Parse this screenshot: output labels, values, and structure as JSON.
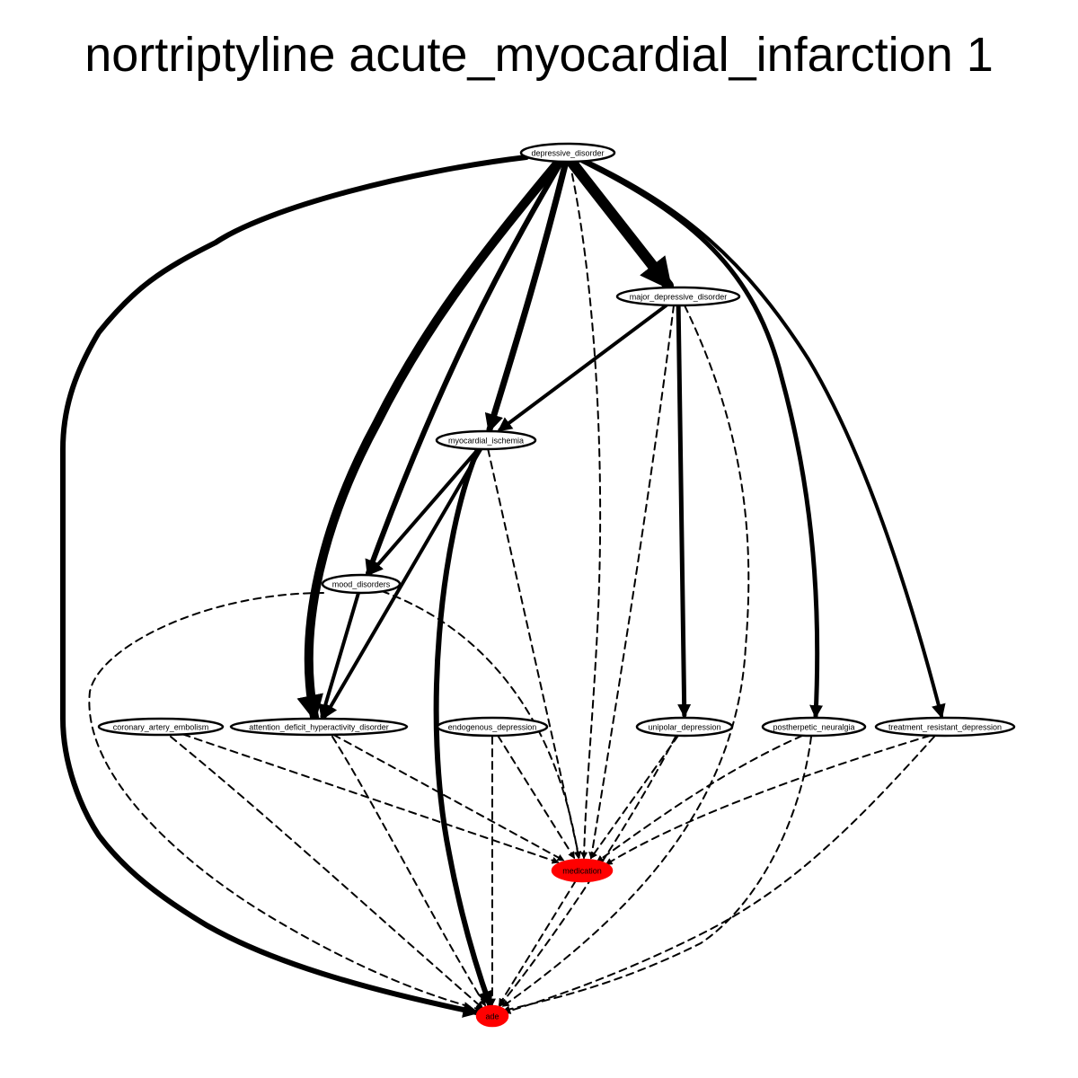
{
  "title": "nortriptyline acute_myocardial_infarction 1",
  "colors": {
    "highlight": "#ff0000",
    "node": "#ffffff",
    "stroke": "#000000"
  },
  "nodes": [
    {
      "id": "depressive_disorder",
      "label": "depressive_disorder",
      "highlight": false
    },
    {
      "id": "major_depressive_disorder",
      "label": "major_depressive_disorder",
      "highlight": false
    },
    {
      "id": "myocardial_ischemia",
      "label": "myocardial_ischemia",
      "highlight": false
    },
    {
      "id": "mood_disorders",
      "label": "mood_disorders",
      "highlight": false
    },
    {
      "id": "coronary_artery_embolism",
      "label": "coronary_artery_embolism",
      "highlight": false
    },
    {
      "id": "attention_deficit_hyperactivity_disorder",
      "label": "attention_deficit_hyperactivity_disorder",
      "highlight": false
    },
    {
      "id": "endogenous_depression",
      "label": "endogenous_depression",
      "highlight": false
    },
    {
      "id": "unipolar_depression",
      "label": "unipolar_depression",
      "highlight": false
    },
    {
      "id": "postherpetic_neuralgia",
      "label": "postherpetic_neuralgia",
      "highlight": false
    },
    {
      "id": "treatment_resistant_depression",
      "label": "treatment_resistant_depression",
      "highlight": false
    },
    {
      "id": "medication",
      "label": "medication",
      "highlight": true
    },
    {
      "id": "ade",
      "label": "ade",
      "highlight": true
    }
  ],
  "edges": [
    {
      "from": "depressive_disorder",
      "to": "ade",
      "style": "solid",
      "weight": 6
    },
    {
      "from": "depressive_disorder",
      "to": "attention_deficit_hyperactivity_disorder",
      "style": "solid",
      "weight": 10
    },
    {
      "from": "depressive_disorder",
      "to": "mood_disorders",
      "style": "solid",
      "weight": 6
    },
    {
      "from": "depressive_disorder",
      "to": "myocardial_ischemia",
      "style": "solid",
      "weight": 7
    },
    {
      "from": "depressive_disorder",
      "to": "medication",
      "style": "dashed",
      "weight": 2
    },
    {
      "from": "depressive_disorder",
      "to": "major_depressive_disorder",
      "style": "solid",
      "weight": 12
    },
    {
      "from": "depressive_disorder",
      "to": "postherpetic_neuralgia",
      "style": "solid",
      "weight": 5
    },
    {
      "from": "depressive_disorder",
      "to": "treatment_resistant_depression",
      "style": "solid",
      "weight": 4
    },
    {
      "from": "major_depressive_disorder",
      "to": "myocardial_ischemia",
      "style": "solid",
      "weight": 4
    },
    {
      "from": "major_depressive_disorder",
      "to": "unipolar_depression",
      "style": "solid",
      "weight": 5
    },
    {
      "from": "major_depressive_disorder",
      "to": "medication",
      "style": "dashed",
      "weight": 2
    },
    {
      "from": "major_depressive_disorder",
      "to": "ade",
      "style": "dashed",
      "weight": 2
    },
    {
      "from": "myocardial_ischemia",
      "to": "mood_disorders",
      "style": "solid",
      "weight": 4
    },
    {
      "from": "myocardial_ischemia",
      "to": "attention_deficit_hyperactivity_disorder",
      "style": "solid",
      "weight": 4
    },
    {
      "from": "myocardial_ischemia",
      "to": "ade",
      "style": "solid",
      "weight": 6
    },
    {
      "from": "myocardial_ischemia",
      "to": "medication",
      "style": "dashed",
      "weight": 2
    },
    {
      "from": "mood_disorders",
      "to": "attention_deficit_hyperactivity_disorder",
      "style": "solid",
      "weight": 4
    },
    {
      "from": "mood_disorders",
      "to": "medication",
      "style": "dashed",
      "weight": 2
    },
    {
      "from": "mood_disorders",
      "to": "ade",
      "style": "dashed",
      "weight": 2
    },
    {
      "from": "coronary_artery_embolism",
      "to": "medication",
      "style": "dashed",
      "weight": 2
    },
    {
      "from": "coronary_artery_embolism",
      "to": "ade",
      "style": "dashed",
      "weight": 2
    },
    {
      "from": "attention_deficit_hyperactivity_disorder",
      "to": "medication",
      "style": "dashed",
      "weight": 2
    },
    {
      "from": "attention_deficit_hyperactivity_disorder",
      "to": "ade",
      "style": "dashed",
      "weight": 2
    },
    {
      "from": "endogenous_depression",
      "to": "medication",
      "style": "dashed",
      "weight": 2
    },
    {
      "from": "endogenous_depression",
      "to": "ade",
      "style": "dashed",
      "weight": 2
    },
    {
      "from": "unipolar_depression",
      "to": "medication",
      "style": "dashed",
      "weight": 2
    },
    {
      "from": "unipolar_depression",
      "to": "ade",
      "style": "dashed",
      "weight": 2
    },
    {
      "from": "postherpetic_neuralgia",
      "to": "medication",
      "style": "dashed",
      "weight": 2
    },
    {
      "from": "postherpetic_neuralgia",
      "to": "ade",
      "style": "dashed",
      "weight": 2
    },
    {
      "from": "treatment_resistant_depression",
      "to": "medication",
      "style": "dashed",
      "weight": 2
    },
    {
      "from": "treatment_resistant_depression",
      "to": "ade",
      "style": "dashed",
      "weight": 2
    },
    {
      "from": "medication",
      "to": "ade",
      "style": "dashed",
      "weight": 2
    }
  ]
}
